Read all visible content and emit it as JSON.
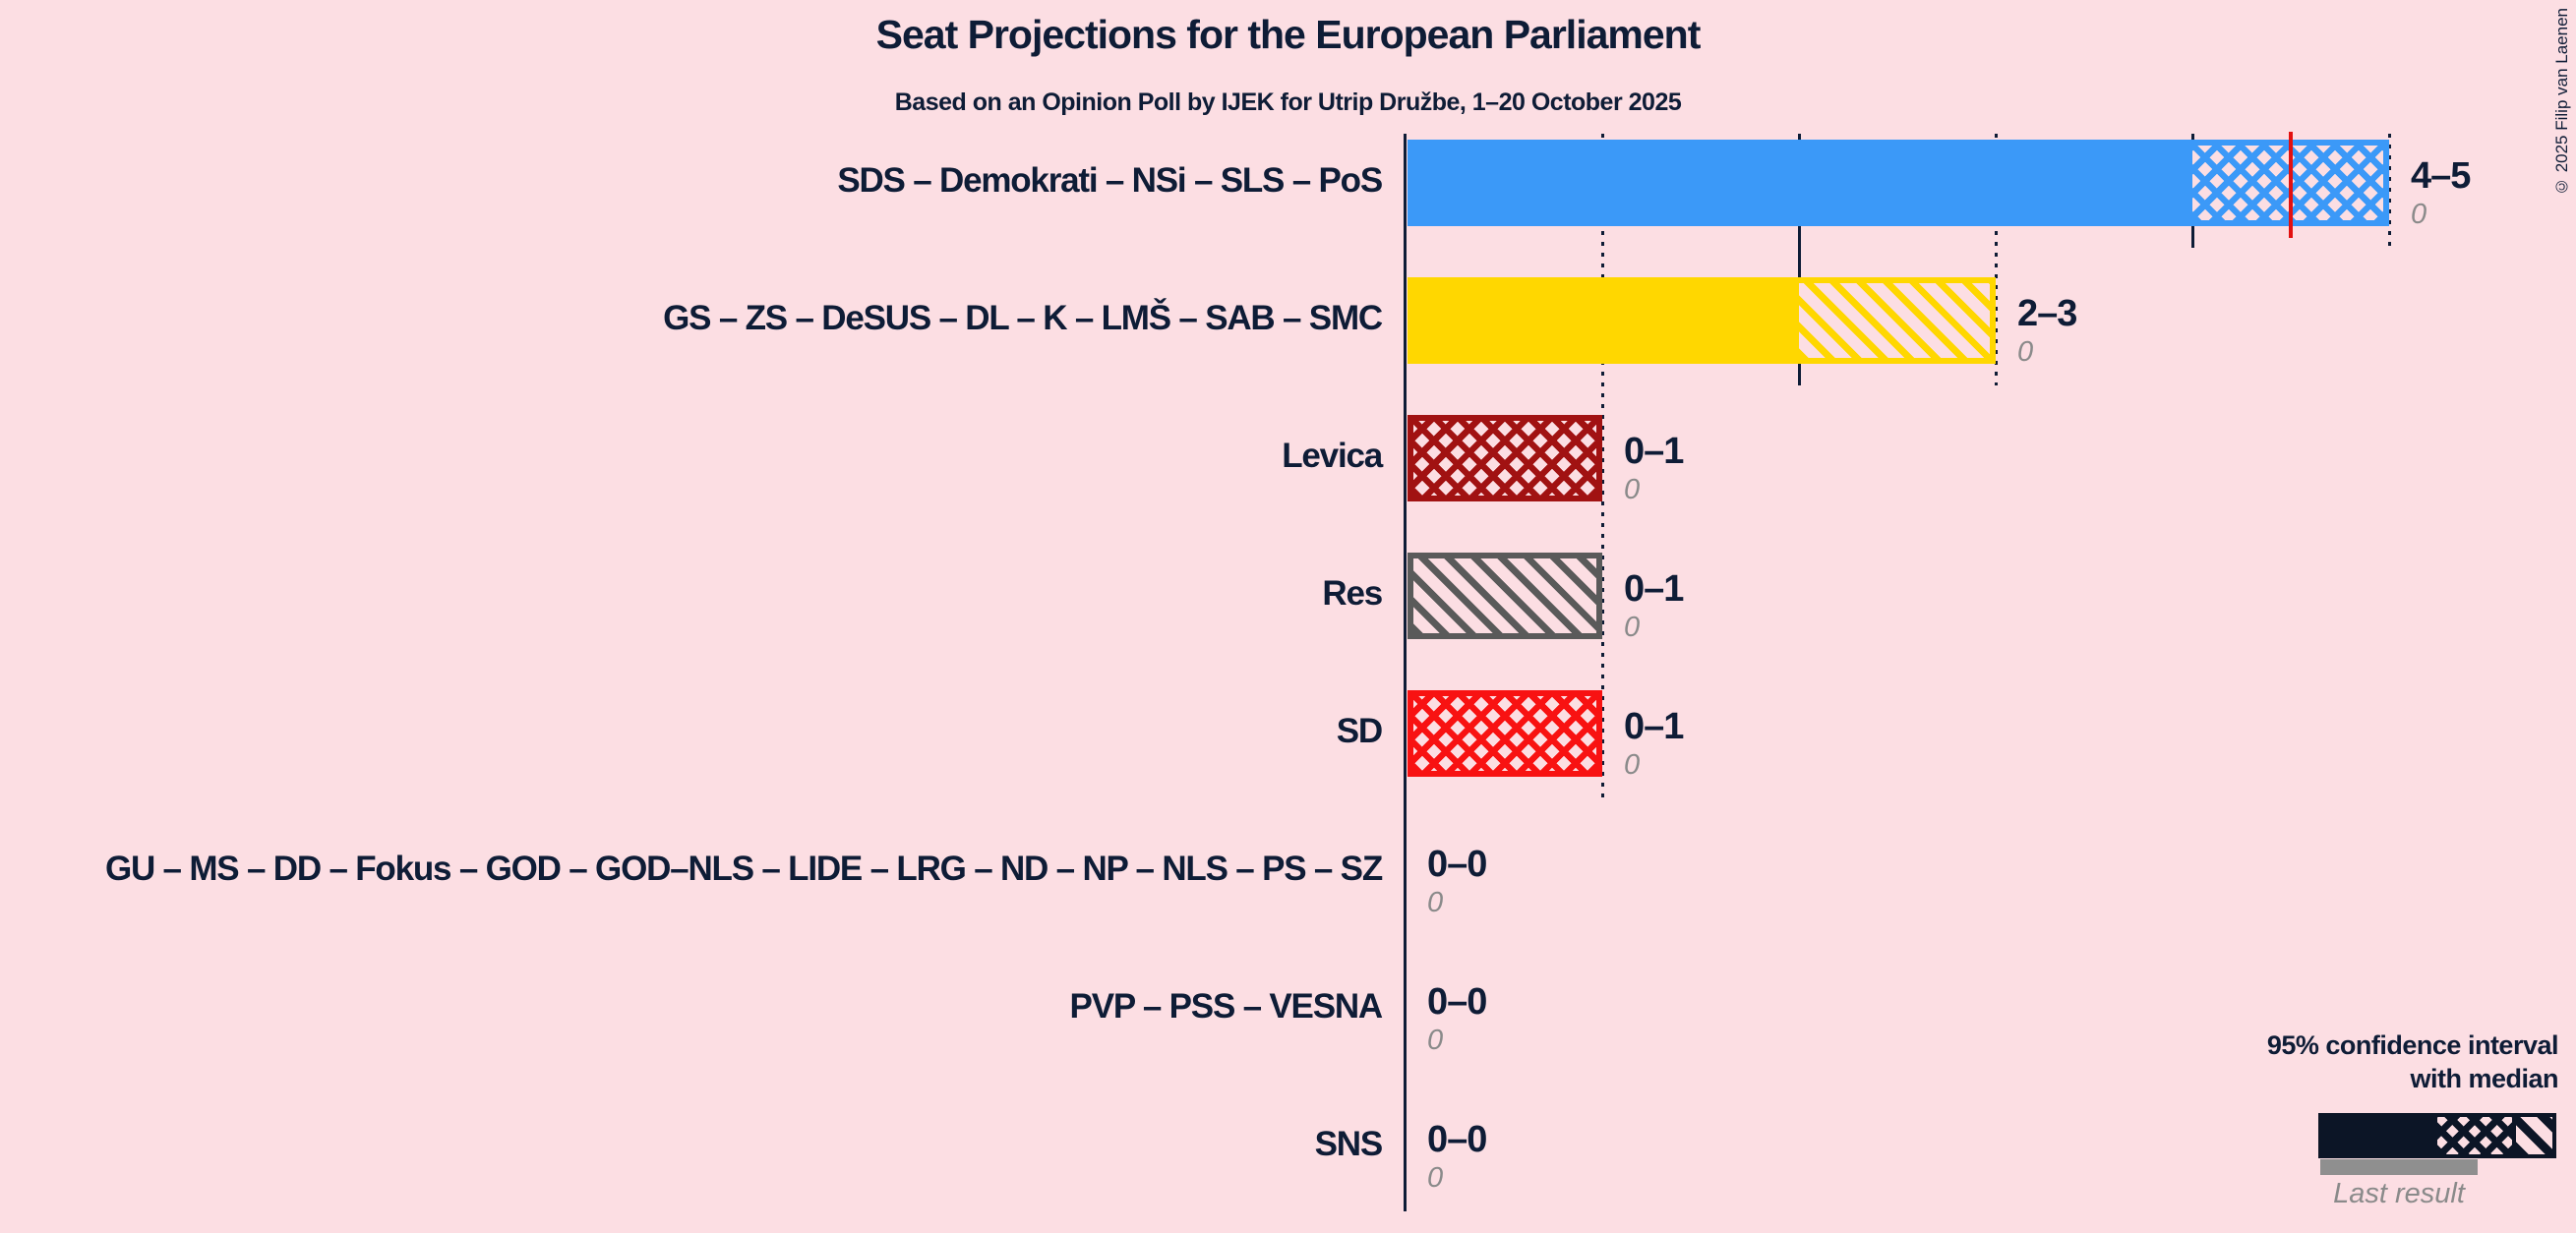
{
  "copyright": "© 2025 Filip van Laenen",
  "legend": {
    "ci_line1": "95% confidence interval",
    "ci_line2": "with median",
    "last_result": "Last result"
  },
  "colors": {
    "background": "#fcdee3",
    "text": "#0e1c36",
    "muted_text": "#8a8a8a",
    "median_line": "#e31010",
    "legend_dark": "#0c1526",
    "legend_gray": "#8f8f8f"
  },
  "chart_data": {
    "type": "bar",
    "orientation": "horizontal",
    "title": "Seat Projections for the European Parliament",
    "subtitle": "Based on an Opinion Poll by IJEK for Utrip Družbe, 1–20 October 2025",
    "x_axis": {
      "min": 0,
      "max": 5,
      "unit": "seats",
      "solid_gridlines": [
        0,
        2,
        4
      ],
      "dotted_gridlines": [
        1,
        3,
        5
      ]
    },
    "legend_position": "bottom-right",
    "rows": [
      {
        "label": "SDS – Demokrati – NSi – SLS – PoS",
        "ci_low": 4,
        "ci_high": 5,
        "median": 4.5,
        "range_label": "4–5",
        "last_result": "0",
        "color": "#3b99f8",
        "pattern": "crosshatch"
      },
      {
        "label": "GS – ZS – DeSUS – DL – K – LMŠ – SAB – SMC",
        "ci_low": 2,
        "ci_high": 3,
        "median": null,
        "range_label": "2–3",
        "last_result": "0",
        "color": "#ffd700",
        "pattern": "diagonal"
      },
      {
        "label": "Levica",
        "ci_low": 0,
        "ci_high": 1,
        "median": null,
        "range_label": "0–1",
        "last_result": "0",
        "color": "#a11212",
        "pattern": "crosshatch"
      },
      {
        "label": "Res",
        "ci_low": 0,
        "ci_high": 1,
        "median": null,
        "range_label": "0–1",
        "last_result": "0",
        "color": "#5a5a5a",
        "pattern": "diagonal"
      },
      {
        "label": "SD",
        "ci_low": 0,
        "ci_high": 1,
        "median": null,
        "range_label": "0–1",
        "last_result": "0",
        "color": "#f81212",
        "pattern": "crosshatch"
      },
      {
        "label": "GU – MS – DD – Fokus – GOD – GOD–NLS – LIDE – LRG – ND – NP – NLS – PS – SZ",
        "ci_low": 0,
        "ci_high": 0,
        "median": null,
        "range_label": "0–0",
        "last_result": "0",
        "color": null,
        "pattern": null
      },
      {
        "label": "PVP – PSS – VESNA",
        "ci_low": 0,
        "ci_high": 0,
        "median": null,
        "range_label": "0–0",
        "last_result": "0",
        "color": null,
        "pattern": null
      },
      {
        "label": "SNS",
        "ci_low": 0,
        "ci_high": 0,
        "median": null,
        "range_label": "0–0",
        "last_result": "0",
        "color": null,
        "pattern": null
      }
    ]
  }
}
